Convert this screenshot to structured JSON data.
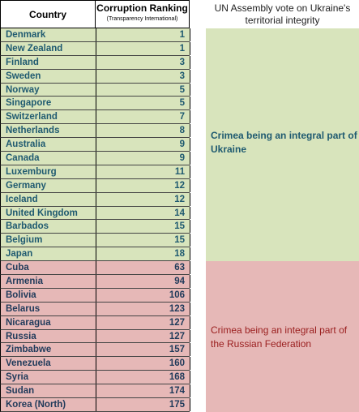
{
  "headers": {
    "country": "Country",
    "ranking": "Corruption Ranking",
    "ranking_sub": "(Transparency International)",
    "vote": "UN Assembly vote on Ukraine's territorial integrity"
  },
  "groups": [
    {
      "label": "Crimea being an integral part of Ukraine",
      "color": "#d8e4bc",
      "rows": [
        {
          "country": "Denmark",
          "rank": "1"
        },
        {
          "country": "New Zealand",
          "rank": "1"
        },
        {
          "country": "Finland",
          "rank": "3"
        },
        {
          "country": "Sweden",
          "rank": "3"
        },
        {
          "country": "Norway",
          "rank": "5"
        },
        {
          "country": "Singapore",
          "rank": "5"
        },
        {
          "country": "Switzerland",
          "rank": "7"
        },
        {
          "country": "Netherlands",
          "rank": "8"
        },
        {
          "country": "Australia",
          "rank": "9"
        },
        {
          "country": "Canada",
          "rank": "9"
        },
        {
          "country": "Luxemburg",
          "rank": "11"
        },
        {
          "country": "Germany",
          "rank": "12"
        },
        {
          "country": "Iceland",
          "rank": "12"
        },
        {
          "country": "United Kingdom",
          "rank": "14"
        },
        {
          "country": "Barbados",
          "rank": "15"
        },
        {
          "country": "Belgium",
          "rank": "15"
        },
        {
          "country": "Japan",
          "rank": "18"
        }
      ]
    },
    {
      "label": "Crimea being an integral part of the Russian Federation",
      "color": "#e6b8b7",
      "rows": [
        {
          "country": "Cuba",
          "rank": "63"
        },
        {
          "country": "Armenia",
          "rank": "94"
        },
        {
          "country": "Bolivia",
          "rank": "106"
        },
        {
          "country": "Belarus",
          "rank": "123"
        },
        {
          "country": "Nicaragua",
          "rank": "127"
        },
        {
          "country": "Russia",
          "rank": "127"
        },
        {
          "country": "Zimbabwe",
          "rank": "157"
        },
        {
          "country": "Venezuela",
          "rank": "160"
        },
        {
          "country": "Syria",
          "rank": "168"
        },
        {
          "country": "Sudan",
          "rank": "174"
        },
        {
          "country": "Korea (North)",
          "rank": "175"
        }
      ]
    }
  ]
}
